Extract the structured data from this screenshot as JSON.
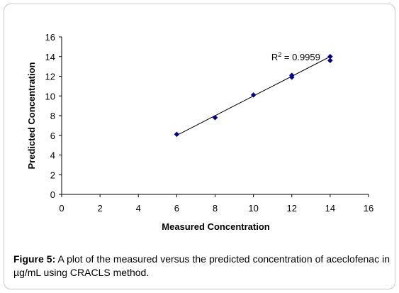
{
  "chart_data": {
    "type": "scatter",
    "xlabel": "Measured Concentration",
    "ylabel": "Predicted Concentration",
    "xlim": [
      0,
      16
    ],
    "ylim": [
      0,
      16
    ],
    "xticks": [
      0,
      2,
      4,
      6,
      8,
      10,
      12,
      14,
      16
    ],
    "yticks": [
      0,
      2,
      4,
      6,
      8,
      10,
      12,
      14,
      16
    ],
    "grid": false,
    "series": [
      {
        "points": [
          [
            6,
            6.1
          ],
          [
            8,
            7.8
          ],
          [
            10,
            10.1
          ],
          [
            12,
            12.1
          ],
          [
            12,
            11.9
          ],
          [
            14,
            14.0
          ],
          [
            14,
            13.6
          ]
        ],
        "color": "#00008b",
        "marker": "diamond"
      }
    ],
    "trendline": {
      "type": "linear",
      "x_range": [
        6,
        14
      ],
      "y_range": [
        6.0,
        14.0
      ],
      "color": "#000000"
    },
    "annotation": {
      "label": "R",
      "superscript": "2",
      "value_text": " = 0.9959",
      "near": [
        14,
        14
      ]
    }
  },
  "caption": {
    "figure_label": "Figure 5:",
    "text": " A plot of the measured versus the predicted concentration of aceclofenac in µg/mL using CRACLS method."
  }
}
